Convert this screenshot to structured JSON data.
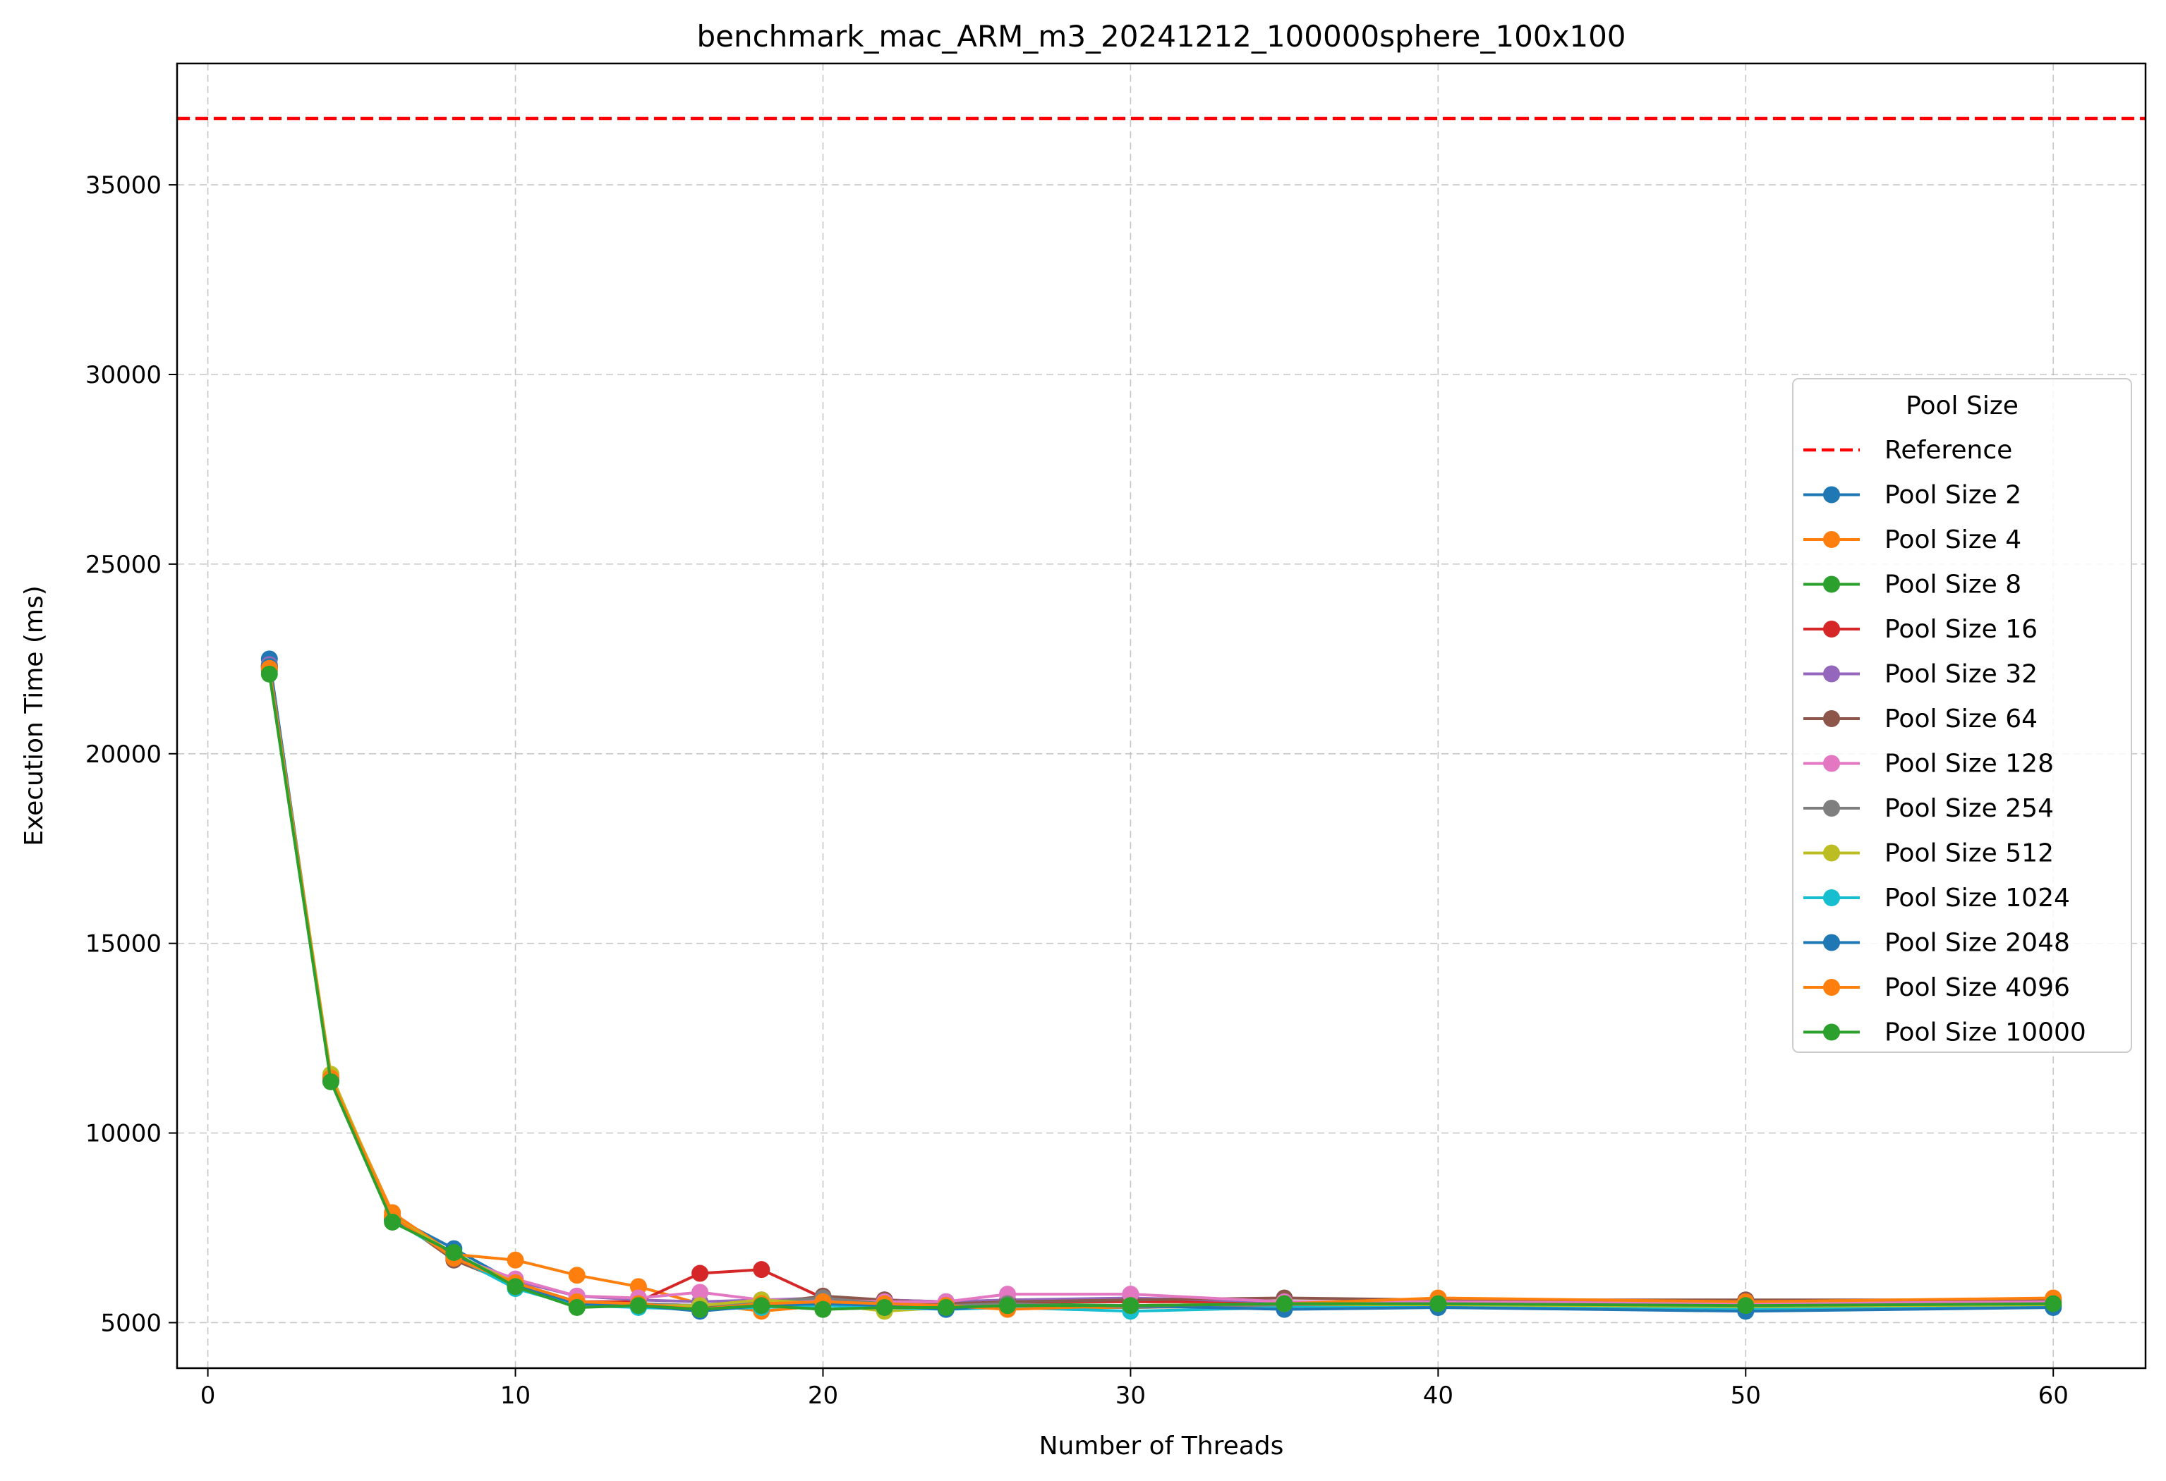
{
  "chart_data": {
    "type": "line",
    "title": "benchmark_mac_ARM_m3_20241212_100000sphere_100x100",
    "xlabel": "Number of Threads",
    "ylabel": "Execution Time (ms)",
    "xlim": [
      -1,
      63
    ],
    "ylim": [
      3800,
      38200
    ],
    "xticks": [
      0,
      10,
      20,
      30,
      40,
      50,
      60
    ],
    "yticks": [
      5000,
      10000,
      15000,
      20000,
      25000,
      30000,
      35000
    ],
    "grid": true,
    "legend": {
      "title": "Pool Size",
      "placement": "center-right"
    },
    "x": [
      2,
      4,
      6,
      8,
      10,
      12,
      14,
      16,
      18,
      20,
      22,
      24,
      26,
      30,
      35,
      40,
      50,
      60
    ],
    "reference": {
      "name": "Reference",
      "value": 36750,
      "color": "#ff0000"
    },
    "series": [
      {
        "name": "Pool Size 2",
        "color": "#1f77b4",
        "values": [
          22500,
          11400,
          7800,
          6950,
          6050,
          5550,
          5450,
          5350,
          5450,
          5650,
          5550,
          5550,
          5450,
          5450,
          5400,
          5450,
          5350,
          5450
        ]
      },
      {
        "name": "Pool Size 4",
        "color": "#ff7f0e",
        "values": [
          22300,
          11450,
          7900,
          6800,
          6650,
          6250,
          5950,
          5500,
          5300,
          5450,
          5450,
          5400,
          5400,
          5400,
          5450,
          5400,
          5450,
          5550
        ]
      },
      {
        "name": "Pool Size 8",
        "color": "#2ca02c",
        "values": [
          22200,
          11400,
          7750,
          6750,
          5950,
          5450,
          5500,
          5400,
          5450,
          5350,
          5400,
          5400,
          5500,
          5450,
          5500,
          5450,
          5450,
          5450
        ]
      },
      {
        "name": "Pool Size 16",
        "color": "#d62728",
        "values": [
          22300,
          11450,
          7750,
          6700,
          6000,
          5550,
          5550,
          6300,
          6400,
          5650,
          5600,
          5550,
          5550,
          5550,
          5550,
          5550,
          5500,
          5550
        ]
      },
      {
        "name": "Pool Size 32",
        "color": "#9467bd",
        "values": [
          22350,
          11450,
          7750,
          6750,
          6100,
          5700,
          5600,
          5550,
          5600,
          5650,
          5600,
          5550,
          5600,
          5650,
          5550,
          5550,
          5550,
          5600
        ]
      },
      {
        "name": "Pool Size 64",
        "color": "#8c564b",
        "values": [
          22300,
          11400,
          7800,
          6650,
          6000,
          5550,
          5500,
          5450,
          5500,
          5700,
          5600,
          5500,
          5550,
          5600,
          5650,
          5600,
          5600,
          5600
        ]
      },
      {
        "name": "Pool Size 128",
        "color": "#e377c2",
        "values": [
          22300,
          11450,
          7800,
          6750,
          6150,
          5700,
          5650,
          5800,
          5600,
          5600,
          5550,
          5550,
          5750,
          5750,
          5550,
          5550,
          5500,
          5550
        ]
      },
      {
        "name": "Pool Size 254",
        "color": "#7f7f7f",
        "values": [
          22300,
          11400,
          7750,
          6750,
          6050,
          5500,
          5500,
          5450,
          5550,
          5650,
          5500,
          5450,
          5500,
          5400,
          5450,
          5450,
          5400,
          5450
        ]
      },
      {
        "name": "Pool Size 512",
        "color": "#bcbd22",
        "values": [
          22300,
          11550,
          7800,
          6800,
          6050,
          5500,
          5450,
          5450,
          5600,
          5500,
          5300,
          5400,
          5450,
          5450,
          5500,
          5450,
          5400,
          5450
        ]
      },
      {
        "name": "Pool Size 1024",
        "color": "#17becf",
        "values": [
          22250,
          11400,
          7700,
          6750,
          5900,
          5450,
          5400,
          5350,
          5400,
          5450,
          5400,
          5350,
          5400,
          5300,
          5400,
          5400,
          5350,
          5400
        ]
      },
      {
        "name": "Pool Size 2048",
        "color": "#1f77b4",
        "values": [
          22300,
          11400,
          7700,
          6800,
          6000,
          5500,
          5450,
          5300,
          5450,
          5500,
          5450,
          5350,
          5450,
          5450,
          5350,
          5400,
          5300,
          5400
        ]
      },
      {
        "name": "Pool Size 4096",
        "color": "#ff7f0e",
        "values": [
          22250,
          11450,
          7800,
          6700,
          6050,
          5550,
          5500,
          5350,
          5500,
          5550,
          5500,
          5450,
          5350,
          5450,
          5500,
          5650,
          5550,
          5650
        ]
      },
      {
        "name": "Pool Size 10000",
        "color": "#2ca02c",
        "values": [
          22100,
          11350,
          7650,
          6850,
          5950,
          5400,
          5450,
          5350,
          5450,
          5350,
          5400,
          5400,
          5450,
          5450,
          5500,
          5500,
          5450,
          5500
        ]
      }
    ]
  }
}
